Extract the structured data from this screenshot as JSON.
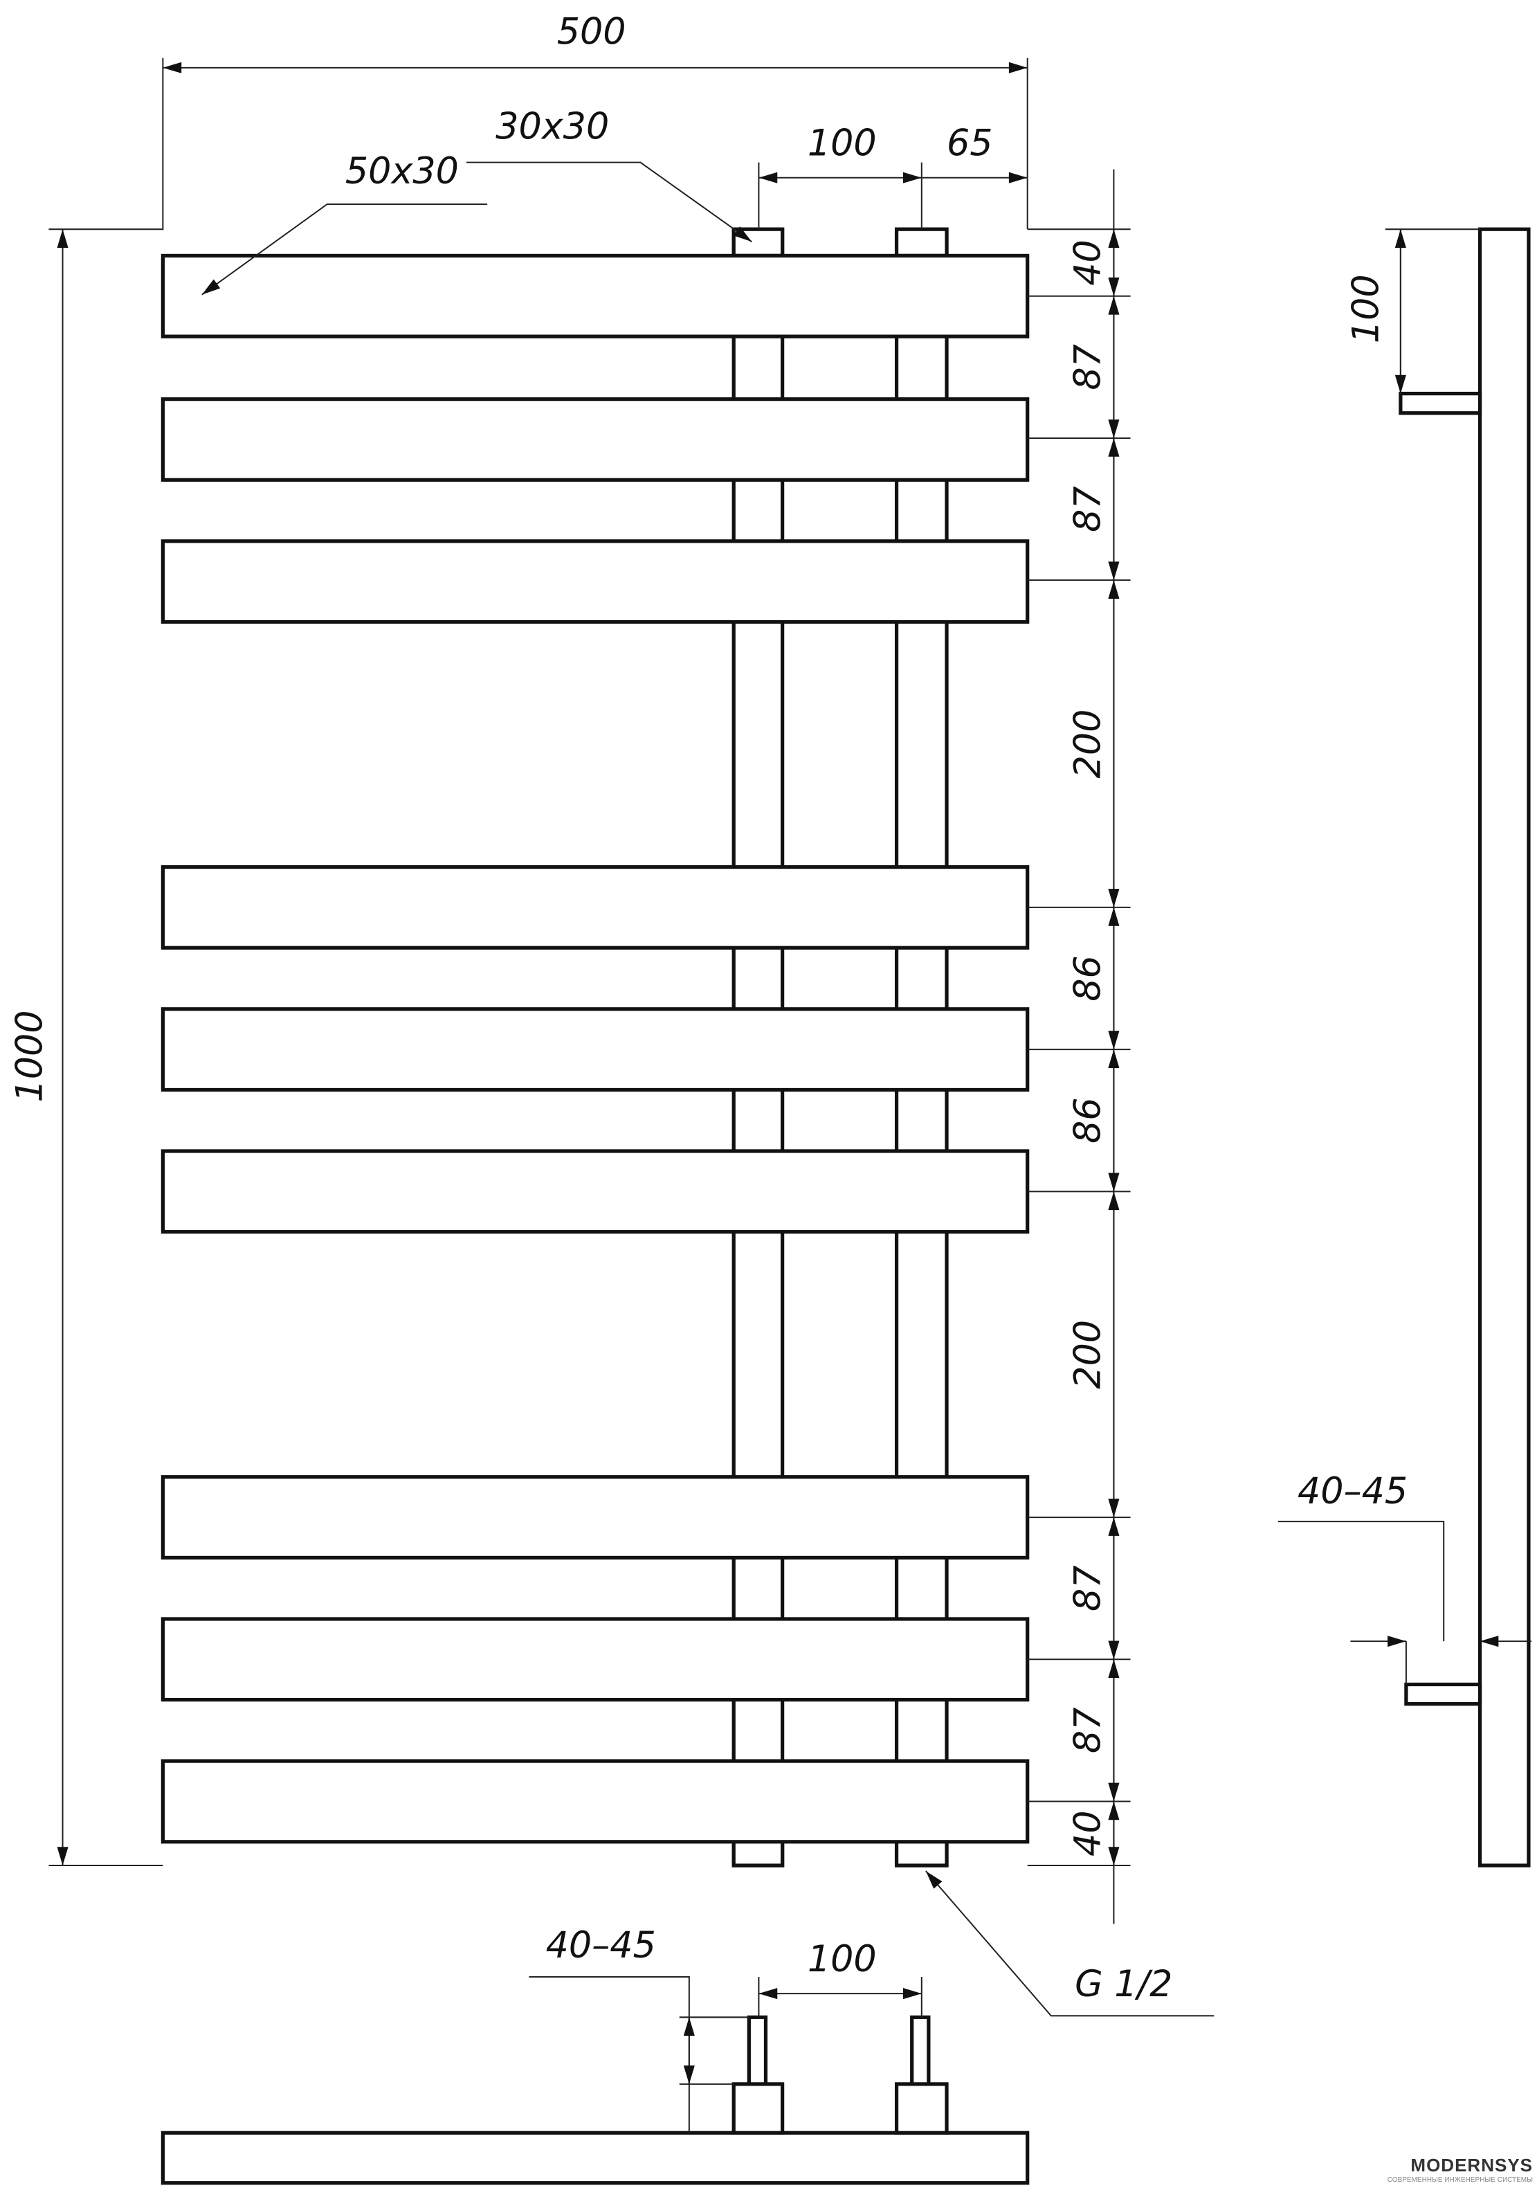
{
  "dimensions": {
    "overall_width": "500",
    "overall_height": "1000",
    "bar_section": "50x30",
    "pipe_section": "30x30",
    "pipe_spacing": "100",
    "pipe_offset": "65",
    "spacings": [
      "40",
      "87",
      "87",
      "200",
      "86",
      "86",
      "200",
      "87",
      "87",
      "40"
    ],
    "side_top": "100",
    "side_wall": "40–45",
    "bottom_wall": "40–45",
    "bottom_spacing": "100",
    "connection": "G 1/2"
  },
  "logo": {
    "name": "MODERNSYS",
    "tagline": "СОВРЕМЕННЫЕ ИНЖЕНЕРНЫЕ СИСТЕМЫ",
    "colors": [
      "#2aa3dc",
      "#e8743b"
    ]
  }
}
